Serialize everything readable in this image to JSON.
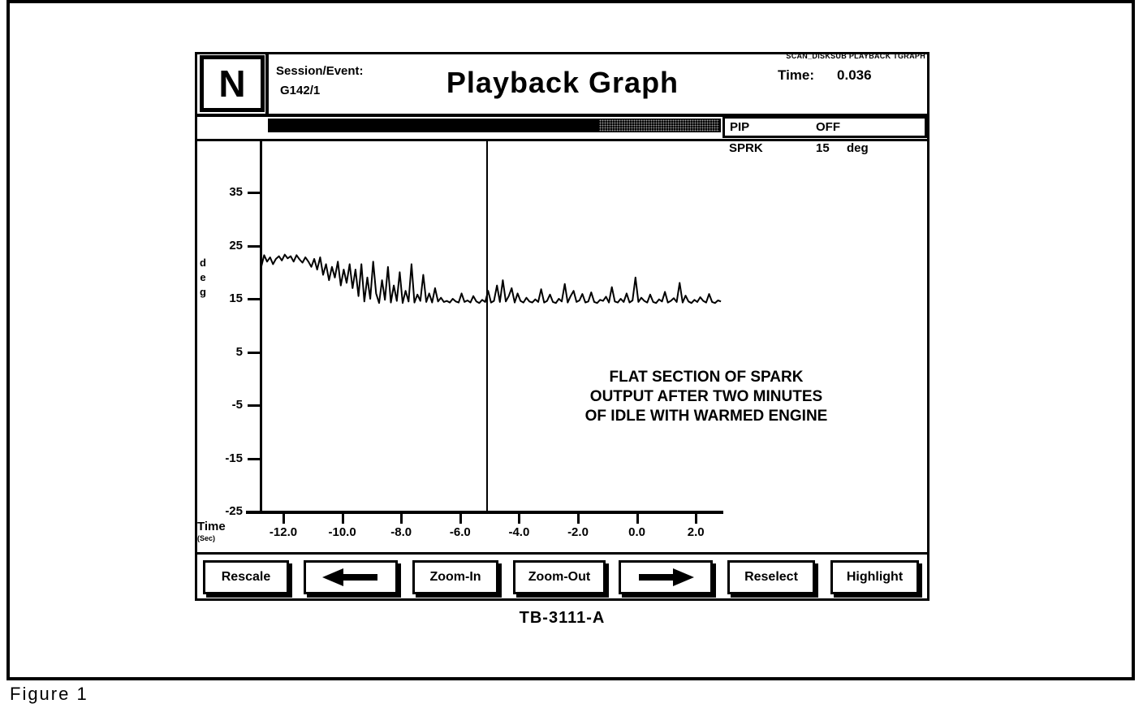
{
  "figure": {
    "label": "Figure 1",
    "caption": "TB-3111-A"
  },
  "header": {
    "logo": "N",
    "session_label": "Session/Event:",
    "session_value": "G142/1",
    "title": "Playback Graph",
    "system_line": "SCAN_DISKSUB PLAYBACK TGRAPH",
    "time_label": "Time:",
    "time_value": "0.036"
  },
  "status": {
    "pip_label": "PIP",
    "pip_value": "OFF",
    "sprk_label": "SPRK",
    "sprk_value": "15",
    "sprk_unit": "deg"
  },
  "annotation": {
    "line1": "FLAT SECTION OF SPARK",
    "line2": "OUTPUT AFTER TWO MINUTES",
    "line3": "OF IDLE WITH WARMED ENGINE"
  },
  "buttons": [
    {
      "id": "rescale",
      "label": "Rescale"
    },
    {
      "id": "scroll-left",
      "label": "",
      "icon": "arrow-left"
    },
    {
      "id": "zoom-in",
      "label": "Zoom-In"
    },
    {
      "id": "zoom-out",
      "label": "Zoom-Out"
    },
    {
      "id": "scroll-right",
      "label": "",
      "icon": "arrow-right"
    },
    {
      "id": "reselect",
      "label": "Reselect"
    },
    {
      "id": "highlight",
      "label": "Highlight"
    }
  ],
  "chart_data": {
    "type": "line",
    "title": "Playback Graph",
    "ylabel": "deg",
    "xlabel": "Time",
    "xlabel_unit": "(Sec)",
    "ylim": [
      -25,
      45
    ],
    "xlim": [
      -12.8,
      3.0
    ],
    "y_ticks": [
      "35",
      "25",
      "15",
      "5",
      "-5",
      "-15",
      "-25"
    ],
    "y_tick_values": [
      35,
      25,
      15,
      5,
      -5,
      -15,
      -25
    ],
    "x_ticks": [
      "-12.0",
      "-10.0",
      "-8.0",
      "-6.0",
      "-4.0",
      "-2.0",
      "0.0",
      "2.0"
    ],
    "x_tick_values": [
      -12,
      -10,
      -8,
      -6,
      -4,
      -2,
      0,
      2
    ],
    "cursor_time": -5.1,
    "grid": false,
    "legend": false,
    "series": [
      {
        "name": "SPRK (deg)",
        "t_start": -12.75,
        "t_step": 0.1,
        "values": [
          21.0,
          23.2,
          22.0,
          22.8,
          21.5,
          22.5,
          23.0,
          22.2,
          23.3,
          22.6,
          23.0,
          22.0,
          23.2,
          22.4,
          21.8,
          22.8,
          22.0,
          21.0,
          22.5,
          20.5,
          22.8,
          19.5,
          21.5,
          18.5,
          21.0,
          19.0,
          22.0,
          17.5,
          20.5,
          18.0,
          21.5,
          17.0,
          20.5,
          15.5,
          21.5,
          14.5,
          19.0,
          15.0,
          22.0,
          16.0,
          14.2,
          18.5,
          14.8,
          21.0,
          14.3,
          17.5,
          14.6,
          20.0,
          14.2,
          16.5,
          14.5,
          21.5,
          14.3,
          15.8,
          14.6,
          19.5,
          14.4,
          16.0,
          14.3,
          17.0,
          14.5,
          15.2,
          14.4,
          14.6,
          14.3,
          15.0,
          14.5,
          14.3,
          16.0,
          14.4,
          14.7,
          14.3,
          15.5,
          14.5,
          14.2,
          14.8,
          14.4,
          16.5,
          14.3,
          14.6,
          17.5,
          14.4,
          18.5,
          14.5,
          15.5,
          17.0,
          14.3,
          16.0,
          14.6,
          14.3,
          15.2,
          14.5,
          14.3,
          14.9,
          14.4,
          16.8,
          14.3,
          14.6,
          15.8,
          14.4,
          14.2,
          15.0,
          14.5,
          17.8,
          14.3,
          15.5,
          16.5,
          14.4,
          14.7,
          15.9,
          14.3,
          14.5,
          16.2,
          14.4,
          14.2,
          14.8,
          14.6,
          15.4,
          14.3,
          17.2,
          14.5,
          14.3,
          15.0,
          14.4,
          16.0,
          14.3,
          14.7,
          19.0,
          14.4,
          15.2,
          14.6,
          14.3,
          15.8,
          14.4,
          14.2,
          14.9,
          14.5,
          16.3,
          14.3,
          14.6,
          15.1,
          14.4,
          18.0,
          14.3,
          15.6,
          14.5,
          14.2,
          14.8,
          14.4,
          15.3,
          14.6,
          14.3,
          15.9,
          14.4,
          14.2,
          14.7,
          14.5
        ]
      }
    ]
  }
}
